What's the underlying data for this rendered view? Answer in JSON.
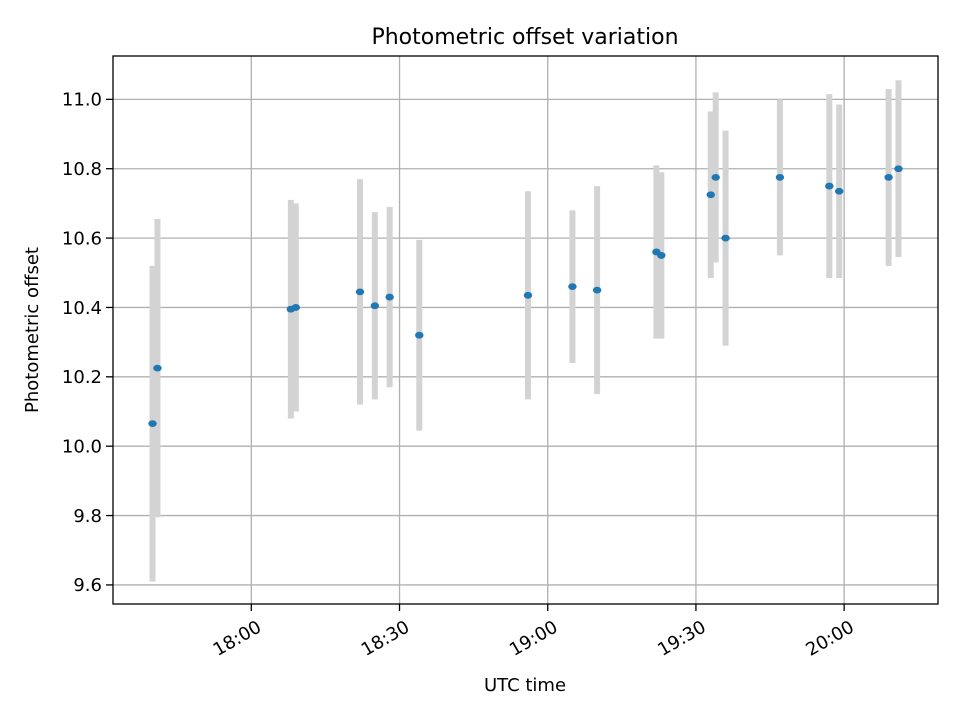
{
  "chart_data": {
    "type": "scatter",
    "title": "Photometric offset variation",
    "xlabel": "UTC time",
    "ylabel": "Photometric offset",
    "x_axis": {
      "type": "time",
      "ticks": [
        "18:00",
        "18:30",
        "19:00",
        "19:30",
        "20:00"
      ],
      "range": [
        "17:32",
        "20:19"
      ]
    },
    "y_axis": {
      "ticks": [
        "9.6",
        "9.8",
        "10.0",
        "10.2",
        "10.4",
        "10.6",
        "10.8",
        "11.0"
      ],
      "ylim": [
        9.545,
        11.125
      ]
    },
    "grid": true,
    "series": [
      {
        "marker_color": "#1f77b4",
        "errorbar_color": "#d3d3d3",
        "points": [
          {
            "time": "17:40",
            "y": 10.065,
            "err": 0.455
          },
          {
            "time": "17:41",
            "y": 10.225,
            "err": 0.43
          },
          {
            "time": "18:08",
            "y": 10.395,
            "err": 0.315
          },
          {
            "time": "18:09",
            "y": 10.4,
            "err": 0.3
          },
          {
            "time": "18:22",
            "y": 10.445,
            "err": 0.325
          },
          {
            "time": "18:25",
            "y": 10.405,
            "err": 0.27
          },
          {
            "time": "18:28",
            "y": 10.43,
            "err": 0.26
          },
          {
            "time": "18:34",
            "y": 10.32,
            "err": 0.275
          },
          {
            "time": "18:56",
            "y": 10.435,
            "err": 0.3
          },
          {
            "time": "19:05",
            "y": 10.46,
            "err": 0.22
          },
          {
            "time": "19:10",
            "y": 10.45,
            "err": 0.3
          },
          {
            "time": "19:22",
            "y": 10.56,
            "err": 0.25
          },
          {
            "time": "19:23",
            "y": 10.55,
            "err": 0.24
          },
          {
            "time": "19:33",
            "y": 10.725,
            "err": 0.24
          },
          {
            "time": "19:34",
            "y": 10.775,
            "err": 0.245
          },
          {
            "time": "19:36",
            "y": 10.6,
            "err": 0.31
          },
          {
            "time": "19:47",
            "y": 10.775,
            "err": 0.225
          },
          {
            "time": "19:57",
            "y": 10.75,
            "err": 0.265
          },
          {
            "time": "19:59",
            "y": 10.735,
            "err": 0.25
          },
          {
            "time": "20:09",
            "y": 10.775,
            "err": 0.255
          },
          {
            "time": "20:11",
            "y": 10.8,
            "err": 0.255
          }
        ]
      }
    ]
  }
}
